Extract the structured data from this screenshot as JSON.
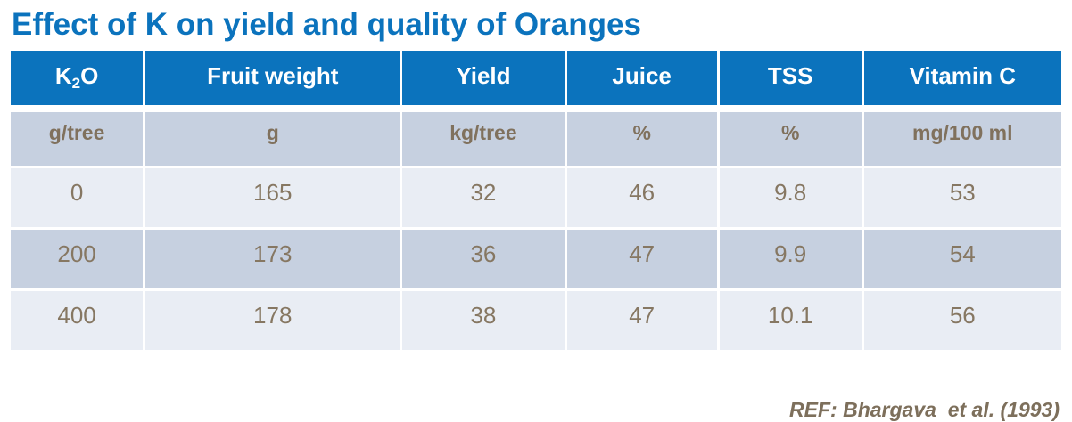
{
  "title": "Effect of K on yield and quality of Oranges",
  "colors": {
    "title_text": "#0b73bd",
    "header_bg": "#0b73bd",
    "header_text": "#ffffff",
    "band_dark": "#c6d0e0",
    "band_light": "#e9edf4",
    "body_text": "#867762",
    "reference_text": "#7d6f5b"
  },
  "chart_data": {
    "type": "table",
    "title": "Effect of K on yield and quality of Oranges",
    "columns": [
      "K2O",
      "Fruit weight",
      "Yield",
      "Juice",
      "TSS",
      "Vitamin C"
    ],
    "k2o_display": {
      "base": "K",
      "sub": "2",
      "tail": "O"
    },
    "units": [
      "g/tree",
      "g",
      "kg/tree",
      "%",
      "%",
      "mg/100 ml"
    ],
    "rows": [
      [
        "0",
        "165",
        "32",
        "46",
        "9.8",
        "53"
      ],
      [
        "200",
        "173",
        "36",
        "47",
        "9.9",
        "54"
      ],
      [
        "400",
        "178",
        "38",
        "47",
        "10.1",
        "56"
      ]
    ],
    "reference": "REF: Bhargava  et al. (1993)",
    "layout": {
      "banding": [
        "light",
        "dark",
        "light"
      ],
      "header_position": "top"
    }
  }
}
